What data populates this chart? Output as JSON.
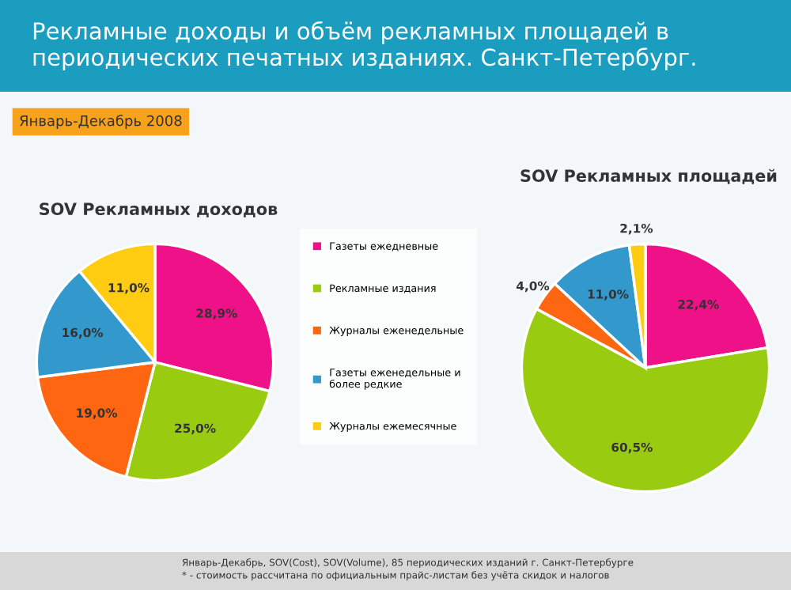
{
  "chart_data": [
    {
      "type": "pie",
      "title": "SOV Рекламных доходов",
      "categories": [
        "Газеты ежедневные",
        "Рекламные издания",
        "Журналы еженедельные",
        "Газеты еженедельные и более редкие",
        "Журналы ежемесячные"
      ],
      "values": [
        28.9,
        25.0,
        19.0,
        16.0,
        11.0
      ],
      "value_labels": [
        "28,9%",
        "25,0%",
        "19,0%",
        "16,0%",
        "11,0%"
      ],
      "colors": [
        "#ee1188",
        "#99cc11",
        "#ff6611",
        "#3399cc",
        "#ffcc11"
      ],
      "legend": "right",
      "annotations": [
        "Рекламные доходы и объём рекламных площадей в периодических печатных изданиях. Санкт-Петербург.",
        "Январь-Декабрь 2008"
      ]
    },
    {
      "type": "pie",
      "title": "SOV Рекламных площадей",
      "values": [
        22.4,
        60.5,
        4.0,
        11.0,
        2.1
      ],
      "value_labels": [
        "22,4%",
        "60,5%",
        "4,0%",
        "11,0%",
        "2,1%"
      ],
      "colors": [
        "#ee1188",
        "#99cc11",
        "#ff6611",
        "#3399cc",
        "#ffcc11"
      ],
      "annotations": [
        "Январь-Декабрь, SOV(Cost), SOV(Volume), 85 периодических изданий г. Санкт-Петербурге",
        "* - стоимость рассчитана по официальным прайс-листам без учёта скидок и налогов"
      ]
    }
  ]
}
